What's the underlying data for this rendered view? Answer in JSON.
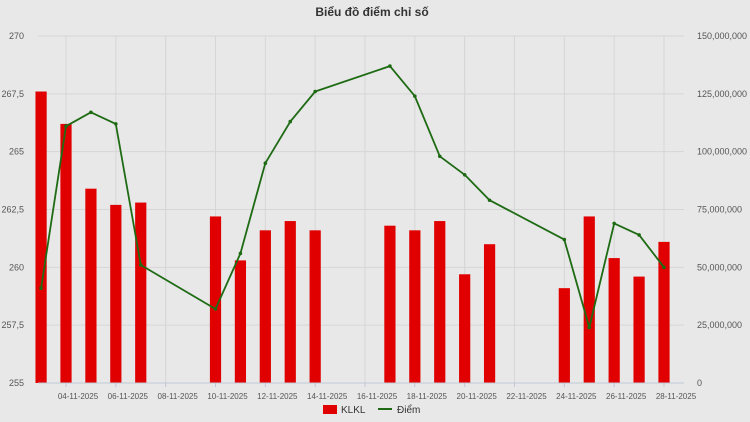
{
  "chart_data": {
    "type": "bar+line",
    "title": "Biểu đồ điểm chỉ số",
    "x_ticks": [
      "04-11-2025",
      "06-11-2025",
      "08-11-2025",
      "10-11-2025",
      "12-11-2025",
      "14-11-2025",
      "16-11-2025",
      "18-11-2025",
      "20-11-2025",
      "22-11-2025",
      "24-11-2025",
      "26-11-2025",
      "28-11-2025"
    ],
    "left_axis": {
      "min": 255,
      "max": 270,
      "ticks": [
        "255",
        "257,5",
        "260",
        "262,5",
        "265",
        "267,5",
        "270"
      ],
      "tick_values": [
        255,
        257.5,
        260,
        262.5,
        265,
        267.5,
        270
      ]
    },
    "right_axis": {
      "min": 0,
      "max": 150000000,
      "ticks": [
        "0",
        "25,000,000",
        "50,000,000",
        "75,000,000",
        "100,000,000",
        "125,000,000",
        "150,000,000"
      ],
      "tick_values": [
        0,
        25000000,
        50000000,
        75000000,
        100000000,
        125000000,
        150000000
      ]
    },
    "grid": true,
    "legend_position": "bottom-center",
    "bar_series": {
      "name": "KLKL",
      "color": "#e00000",
      "axis": "right",
      "points": [
        {
          "date": "03-11-2025",
          "value": 126000000
        },
        {
          "date": "04-11-2025",
          "value": 112000000
        },
        {
          "date": "05-11-2025",
          "value": 84000000
        },
        {
          "date": "06-11-2025",
          "value": 77000000
        },
        {
          "date": "07-11-2025",
          "value": 78000000
        },
        {
          "date": "10-11-2025",
          "value": 72000000
        },
        {
          "date": "11-11-2025",
          "value": 53000000
        },
        {
          "date": "12-11-2025",
          "value": 66000000
        },
        {
          "date": "13-11-2025",
          "value": 70000000
        },
        {
          "date": "14-11-2025",
          "value": 66000000
        },
        {
          "date": "17-11-2025",
          "value": 68000000
        },
        {
          "date": "18-11-2025",
          "value": 66000000
        },
        {
          "date": "19-11-2025",
          "value": 70000000
        },
        {
          "date": "20-11-2025",
          "value": 47000000
        },
        {
          "date": "21-11-2025",
          "value": 60000000
        },
        {
          "date": "24-11-2025",
          "value": 41000000
        },
        {
          "date": "25-11-2025",
          "value": 72000000
        },
        {
          "date": "26-11-2025",
          "value": 54000000
        },
        {
          "date": "27-11-2025",
          "value": 46000000
        },
        {
          "date": "28-11-2025",
          "value": 61000000
        }
      ]
    },
    "line_series": {
      "name": "Điểm",
      "color": "#1e6b14",
      "axis": "left",
      "points": [
        {
          "date": "03-11-2025",
          "value": 259.1
        },
        {
          "date": "04-11-2025",
          "value": 266.1
        },
        {
          "date": "05-11-2025",
          "value": 266.7
        },
        {
          "date": "06-11-2025",
          "value": 266.2
        },
        {
          "date": "07-11-2025",
          "value": 260.1
        },
        {
          "date": "10-11-2025",
          "value": 258.2
        },
        {
          "date": "11-11-2025",
          "value": 260.6
        },
        {
          "date": "12-11-2025",
          "value": 264.5
        },
        {
          "date": "13-11-2025",
          "value": 266.3
        },
        {
          "date": "14-11-2025",
          "value": 267.6
        },
        {
          "date": "17-11-2025",
          "value": 268.7
        },
        {
          "date": "18-11-2025",
          "value": 267.4
        },
        {
          "date": "19-11-2025",
          "value": 264.8
        },
        {
          "date": "20-11-2025",
          "value": 264.0
        },
        {
          "date": "21-11-2025",
          "value": 262.9
        },
        {
          "date": "24-11-2025",
          "value": 261.2
        },
        {
          "date": "25-11-2025",
          "value": 257.4
        },
        {
          "date": "26-11-2025",
          "value": 261.9
        },
        {
          "date": "27-11-2025",
          "value": 261.4
        },
        {
          "date": "28-11-2025",
          "value": 260.0
        }
      ]
    }
  }
}
